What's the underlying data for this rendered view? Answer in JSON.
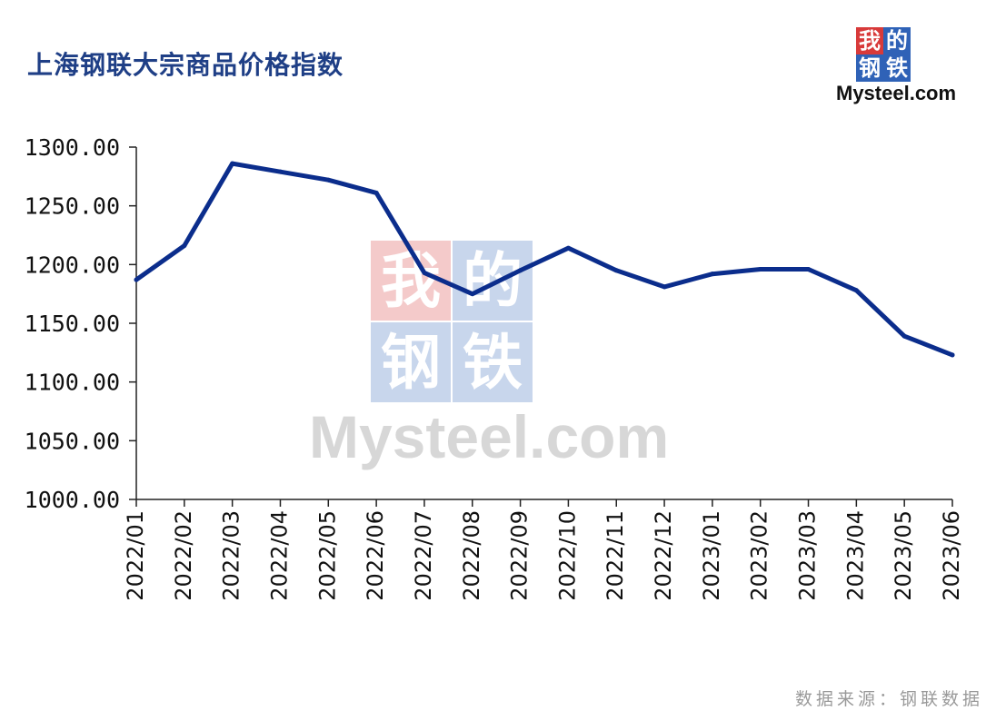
{
  "title": "上海钢联大宗商品价格指数",
  "logo": {
    "chars": [
      "我",
      "的",
      "钢",
      "铁"
    ],
    "site": "Mysteel.com",
    "colors": {
      "red": "#d83a3a",
      "blue": "#2f62b7"
    }
  },
  "watermark": {
    "chars": [
      "我",
      "的",
      "钢",
      "铁"
    ],
    "site": "Mysteel.com"
  },
  "source_label": "数据来源：钢联数据",
  "chart_data": {
    "type": "line",
    "title": "上海钢联大宗商品价格指数",
    "xlabel": "",
    "ylabel": "",
    "ylim": [
      1000,
      1300
    ],
    "yticks": [
      "1000.00",
      "1050.00",
      "1100.00",
      "1150.00",
      "1200.00",
      "1250.00",
      "1300.00"
    ],
    "categories": [
      "2022/01",
      "2022/02",
      "2022/03",
      "2022/04",
      "2022/05",
      "2022/06",
      "2022/07",
      "2022/08",
      "2022/09",
      "2022/10",
      "2022/11",
      "2022/12",
      "2023/01",
      "2023/02",
      "2023/03",
      "2023/04",
      "2023/05",
      "2023/06"
    ],
    "series": [
      {
        "values": [
          1187,
          1216,
          1286,
          1279,
          1272,
          1261,
          1193,
          1175,
          1195,
          1214,
          1195,
          1181,
          1192,
          1196,
          1196,
          1178,
          1139,
          1123
        ],
        "color": "#0b2d8c"
      }
    ],
    "grid": false,
    "legend": "none"
  }
}
